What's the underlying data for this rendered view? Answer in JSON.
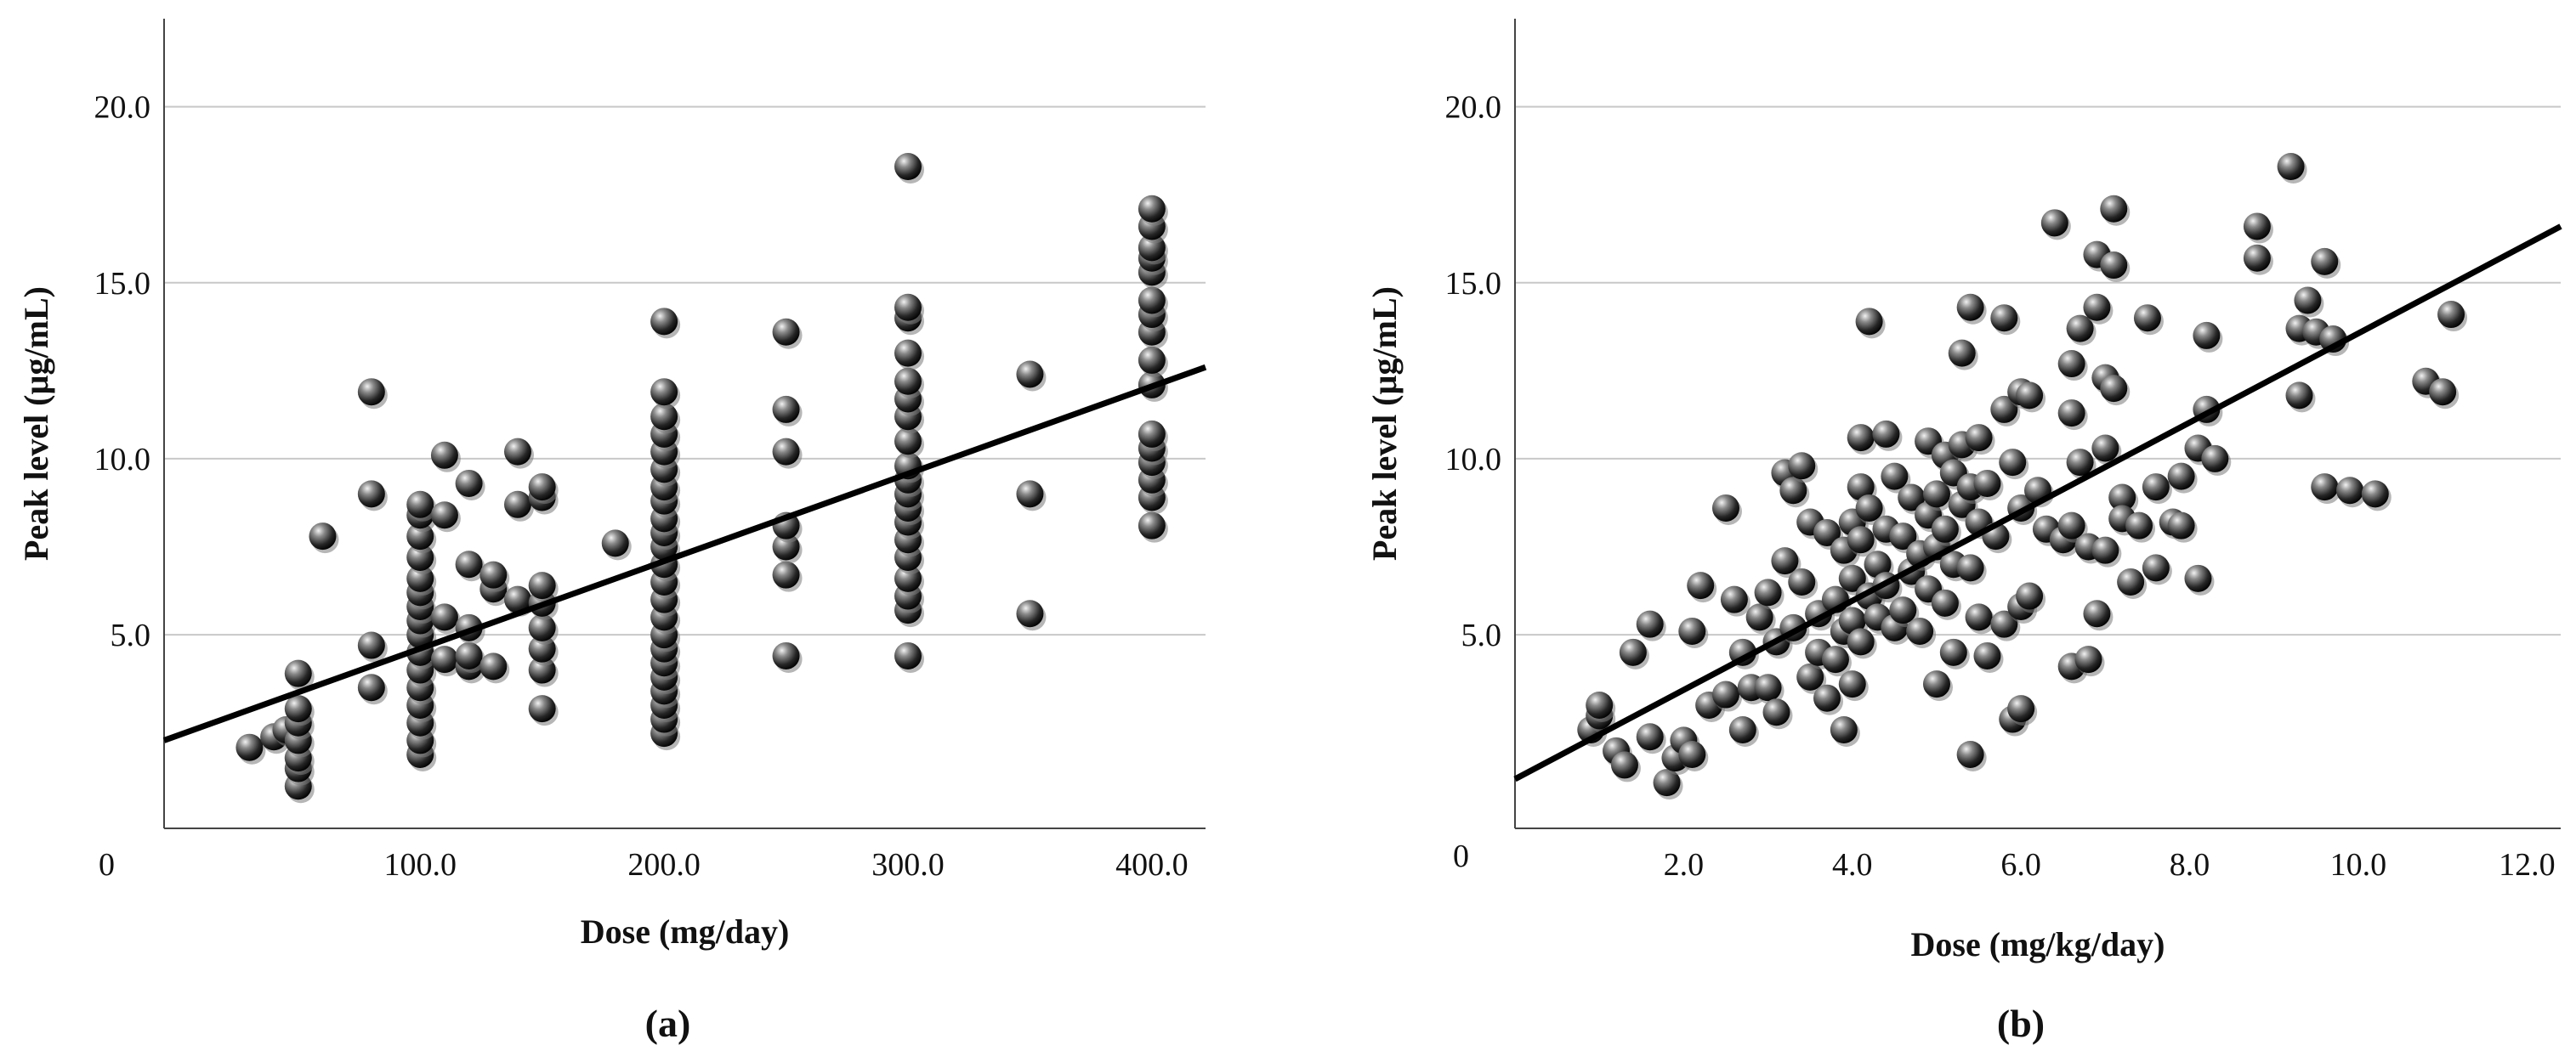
{
  "chart_data": [
    {
      "type": "scatter",
      "panel_label": "(a)",
      "title": "",
      "xlabel": "Dose (mg/day)",
      "ylabel": "Peak level (µg/mL)",
      "origin_label": "0",
      "xlim": [
        -5,
        422
      ],
      "ylim": [
        -0.5,
        22.5
      ],
      "xticks": [
        100,
        200,
        300,
        400
      ],
      "xtick_labels": [
        "100.0",
        "200.0",
        "300.0",
        "400.0"
      ],
      "yticks": [
        5,
        10,
        15,
        20
      ],
      "ytick_labels": [
        "5.0",
        "10.0",
        "15.0",
        "20.0"
      ],
      "grid": "horizontal",
      "trendline": {
        "x": [
          -5,
          422
        ],
        "y": [
          2.0,
          12.6
        ]
      },
      "points": [
        [
          30,
          1.8
        ],
        [
          40,
          2.1
        ],
        [
          45,
          2.3
        ],
        [
          50,
          0.7
        ],
        [
          50,
          1.2
        ],
        [
          50,
          1.5
        ],
        [
          50,
          2.0
        ],
        [
          50,
          2.5
        ],
        [
          50,
          2.9
        ],
        [
          50,
          3.9
        ],
        [
          60,
          7.8
        ],
        [
          80,
          11.9
        ],
        [
          80,
          9.0
        ],
        [
          80,
          4.7
        ],
        [
          80,
          3.5
        ],
        [
          100,
          1.6
        ],
        [
          100,
          2.0
        ],
        [
          100,
          2.5
        ],
        [
          100,
          3.0
        ],
        [
          100,
          3.5
        ],
        [
          100,
          4.0
        ],
        [
          100,
          4.5
        ],
        [
          100,
          5.0
        ],
        [
          100,
          5.4
        ],
        [
          100,
          5.8
        ],
        [
          100,
          6.2
        ],
        [
          100,
          6.6
        ],
        [
          100,
          7.2
        ],
        [
          100,
          7.8
        ],
        [
          100,
          8.4
        ],
        [
          100,
          8.7
        ],
        [
          110,
          4.3
        ],
        [
          110,
          5.5
        ],
        [
          110,
          8.4
        ],
        [
          110,
          10.1
        ],
        [
          120,
          4.1
        ],
        [
          120,
          4.4
        ],
        [
          120,
          5.2
        ],
        [
          120,
          7.0
        ],
        [
          120,
          9.3
        ],
        [
          130,
          4.1
        ],
        [
          130,
          6.3
        ],
        [
          130,
          6.7
        ],
        [
          140,
          6.0
        ],
        [
          140,
          8.7
        ],
        [
          140,
          10.2
        ],
        [
          150,
          2.9
        ],
        [
          150,
          4.0
        ],
        [
          150,
          4.6
        ],
        [
          150,
          5.2
        ],
        [
          150,
          5.9
        ],
        [
          150,
          6.4
        ],
        [
          150,
          8.9
        ],
        [
          150,
          9.2
        ],
        [
          180,
          7.6
        ],
        [
          200,
          2.2
        ],
        [
          200,
          2.6
        ],
        [
          200,
          3.0
        ],
        [
          200,
          3.4
        ],
        [
          200,
          3.8
        ],
        [
          200,
          4.2
        ],
        [
          200,
          4.6
        ],
        [
          200,
          5.0
        ],
        [
          200,
          5.5
        ],
        [
          200,
          6.0
        ],
        [
          200,
          6.5
        ],
        [
          200,
          7.0
        ],
        [
          200,
          7.5
        ],
        [
          200,
          7.9
        ],
        [
          200,
          8.3
        ],
        [
          200,
          8.8
        ],
        [
          200,
          9.2
        ],
        [
          200,
          9.7
        ],
        [
          200,
          10.2
        ],
        [
          200,
          10.7
        ],
        [
          200,
          11.2
        ],
        [
          200,
          11.9
        ],
        [
          200,
          13.9
        ],
        [
          250,
          4.4
        ],
        [
          250,
          6.7
        ],
        [
          250,
          7.5
        ],
        [
          250,
          8.1
        ],
        [
          250,
          10.2
        ],
        [
          250,
          11.4
        ],
        [
          250,
          13.6
        ],
        [
          300,
          4.4
        ],
        [
          300,
          5.7
        ],
        [
          300,
          6.1
        ],
        [
          300,
          6.6
        ],
        [
          300,
          7.2
        ],
        [
          300,
          7.7
        ],
        [
          300,
          8.2
        ],
        [
          300,
          8.6
        ],
        [
          300,
          9.0
        ],
        [
          300,
          9.4
        ],
        [
          300,
          9.8
        ],
        [
          300,
          10.5
        ],
        [
          300,
          11.2
        ],
        [
          300,
          11.7
        ],
        [
          300,
          12.2
        ],
        [
          300,
          13.0
        ],
        [
          300,
          14.0
        ],
        [
          300,
          14.3
        ],
        [
          300,
          18.3
        ],
        [
          350,
          5.6
        ],
        [
          350,
          9.0
        ],
        [
          350,
          12.4
        ],
        [
          400,
          8.1
        ],
        [
          400,
          8.9
        ],
        [
          400,
          9.4
        ],
        [
          400,
          9.9
        ],
        [
          400,
          10.3
        ],
        [
          400,
          10.7
        ],
        [
          400,
          12.1
        ],
        [
          400,
          12.8
        ],
        [
          400,
          13.6
        ],
        [
          400,
          14.1
        ],
        [
          400,
          14.5
        ],
        [
          400,
          15.3
        ],
        [
          400,
          15.7
        ],
        [
          400,
          16.0
        ],
        [
          400,
          16.6
        ],
        [
          400,
          17.1
        ]
      ]
    },
    {
      "type": "scatter",
      "panel_label": "(b)",
      "title": "",
      "xlabel": "Dose (mg/kg/day)",
      "ylabel": "Peak level (µg/mL)",
      "origin_label": "0",
      "xlim": [
        0,
        12.4
      ],
      "ylim": [
        -0.5,
        22.5
      ],
      "xticks": [
        2,
        4,
        6,
        8,
        10,
        12
      ],
      "xtick_labels": [
        "2.0",
        "4.0",
        "6.0",
        "8.0",
        "10.0",
        "12.0"
      ],
      "yticks": [
        5,
        10,
        15,
        20
      ],
      "ytick_labels": [
        "5.0",
        "10.0",
        "15.0",
        "20.0"
      ],
      "grid": "horizontal",
      "trendline": {
        "x": [
          0,
          12.4
        ],
        "y": [
          0.9,
          16.6
        ]
      },
      "points": [
        [
          0.9,
          2.3
        ],
        [
          1.0,
          2.7
        ],
        [
          1.0,
          3.0
        ],
        [
          1.2,
          1.7
        ],
        [
          1.3,
          1.3
        ],
        [
          1.4,
          4.5
        ],
        [
          1.6,
          5.3
        ],
        [
          1.6,
          2.1
        ],
        [
          1.8,
          0.8
        ],
        [
          1.9,
          1.5
        ],
        [
          2.0,
          2.0
        ],
        [
          2.1,
          1.6
        ],
        [
          2.1,
          5.1
        ],
        [
          2.2,
          6.4
        ],
        [
          2.3,
          3.0
        ],
        [
          2.5,
          8.6
        ],
        [
          2.5,
          3.3
        ],
        [
          2.6,
          6.0
        ],
        [
          2.7,
          4.5
        ],
        [
          2.7,
          2.3
        ],
        [
          2.8,
          3.5
        ],
        [
          2.9,
          5.5
        ],
        [
          3.0,
          6.2
        ],
        [
          3.0,
          3.5
        ],
        [
          3.1,
          4.8
        ],
        [
          3.1,
          2.8
        ],
        [
          3.2,
          9.6
        ],
        [
          3.2,
          7.1
        ],
        [
          3.3,
          5.2
        ],
        [
          3.3,
          9.1
        ],
        [
          3.4,
          9.8
        ],
        [
          3.4,
          6.5
        ],
        [
          3.5,
          8.2
        ],
        [
          3.5,
          3.8
        ],
        [
          3.6,
          5.6
        ],
        [
          3.6,
          4.5
        ],
        [
          3.7,
          7.9
        ],
        [
          3.7,
          3.2
        ],
        [
          3.8,
          6.0
        ],
        [
          3.8,
          4.3
        ],
        [
          3.9,
          7.4
        ],
        [
          3.9,
          5.1
        ],
        [
          3.9,
          2.3
        ],
        [
          4.0,
          8.2
        ],
        [
          4.0,
          6.6
        ],
        [
          4.0,
          5.4
        ],
        [
          4.0,
          3.6
        ],
        [
          4.1,
          10.6
        ],
        [
          4.1,
          9.2
        ],
        [
          4.1,
          7.7
        ],
        [
          4.1,
          4.8
        ],
        [
          4.2,
          13.9
        ],
        [
          4.2,
          8.6
        ],
        [
          4.2,
          6.1
        ],
        [
          4.3,
          7.0
        ],
        [
          4.3,
          5.5
        ],
        [
          4.4,
          10.7
        ],
        [
          4.4,
          8.0
        ],
        [
          4.4,
          6.4
        ],
        [
          4.5,
          9.5
        ],
        [
          4.5,
          5.2
        ],
        [
          4.6,
          7.8
        ],
        [
          4.6,
          5.7
        ],
        [
          4.7,
          8.9
        ],
        [
          4.7,
          6.8
        ],
        [
          4.8,
          7.3
        ],
        [
          4.8,
          5.1
        ],
        [
          4.9,
          10.5
        ],
        [
          4.9,
          8.4
        ],
        [
          4.9,
          6.3
        ],
        [
          5.0,
          9.0
        ],
        [
          5.0,
          7.5
        ],
        [
          5.0,
          3.6
        ],
        [
          5.1,
          10.1
        ],
        [
          5.1,
          8.0
        ],
        [
          5.1,
          5.9
        ],
        [
          5.2,
          9.6
        ],
        [
          5.2,
          7.0
        ],
        [
          5.2,
          4.5
        ],
        [
          5.3,
          13.0
        ],
        [
          5.3,
          10.4
        ],
        [
          5.3,
          8.7
        ],
        [
          5.4,
          14.3
        ],
        [
          5.4,
          9.2
        ],
        [
          5.4,
          6.9
        ],
        [
          5.4,
          1.6
        ],
        [
          5.5,
          10.6
        ],
        [
          5.5,
          8.2
        ],
        [
          5.5,
          5.5
        ],
        [
          5.6,
          9.3
        ],
        [
          5.6,
          4.4
        ],
        [
          5.7,
          7.8
        ],
        [
          5.8,
          14.0
        ],
        [
          5.8,
          11.4
        ],
        [
          5.8,
          5.3
        ],
        [
          5.9,
          9.9
        ],
        [
          5.9,
          2.6
        ],
        [
          6.0,
          11.9
        ],
        [
          6.0,
          8.6
        ],
        [
          6.0,
          5.8
        ],
        [
          6.0,
          2.9
        ],
        [
          6.1,
          11.8
        ],
        [
          6.1,
          6.1
        ],
        [
          6.2,
          9.1
        ],
        [
          6.3,
          8.0
        ],
        [
          6.4,
          16.7
        ],
        [
          6.5,
          7.7
        ],
        [
          6.6,
          12.7
        ],
        [
          6.6,
          11.3
        ],
        [
          6.6,
          8.1
        ],
        [
          6.6,
          4.1
        ],
        [
          6.7,
          13.7
        ],
        [
          6.7,
          9.9
        ],
        [
          6.8,
          7.5
        ],
        [
          6.8,
          4.3
        ],
        [
          6.9,
          15.8
        ],
        [
          6.9,
          14.3
        ],
        [
          6.9,
          5.6
        ],
        [
          7.0,
          12.3
        ],
        [
          7.0,
          10.3
        ],
        [
          7.0,
          7.4
        ],
        [
          7.1,
          17.1
        ],
        [
          7.1,
          15.5
        ],
        [
          7.1,
          12.0
        ],
        [
          7.2,
          8.9
        ],
        [
          7.2,
          8.3
        ],
        [
          7.3,
          6.5
        ],
        [
          7.4,
          8.1
        ],
        [
          7.5,
          14.0
        ],
        [
          7.6,
          9.2
        ],
        [
          7.6,
          6.9
        ],
        [
          7.8,
          8.2
        ],
        [
          7.9,
          9.5
        ],
        [
          7.9,
          8.1
        ],
        [
          8.1,
          10.3
        ],
        [
          8.1,
          6.6
        ],
        [
          8.2,
          13.5
        ],
        [
          8.2,
          11.4
        ],
        [
          8.3,
          10.0
        ],
        [
          8.8,
          16.6
        ],
        [
          8.8,
          15.7
        ],
        [
          9.2,
          18.3
        ],
        [
          9.3,
          13.7
        ],
        [
          9.3,
          11.8
        ],
        [
          9.4,
          14.5
        ],
        [
          9.5,
          13.6
        ],
        [
          9.6,
          15.6
        ],
        [
          9.6,
          9.2
        ],
        [
          9.7,
          13.4
        ],
        [
          9.9,
          9.1
        ],
        [
          10.2,
          9.0
        ],
        [
          10.8,
          12.2
        ],
        [
          11.0,
          11.9
        ],
        [
          11.1,
          14.1
        ]
      ]
    }
  ]
}
